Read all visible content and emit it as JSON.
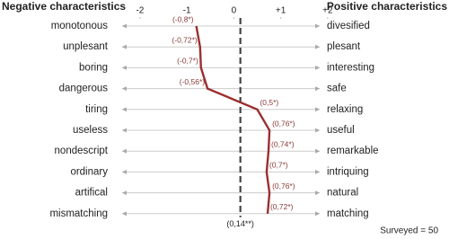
{
  "chart_data": {
    "type": "semantic-differential",
    "left_heading": "Negative characteristics",
    "right_heading": "Positive characteristics",
    "left_labels": [
      "monotonous",
      "unplesant",
      "boring",
      "dangerous",
      "tiring",
      "useless",
      "nondescript",
      "ordinary",
      "artifical",
      "mismatching"
    ],
    "right_labels": [
      "divesified",
      "plesant",
      "interesting",
      "safe",
      "relaxing",
      "useful",
      "remarkable",
      "intriquing",
      "natural",
      "matching"
    ],
    "values": [
      -0.8,
      -0.72,
      -0.7,
      -0.56,
      0.5,
      0.76,
      0.74,
      0.7,
      0.76,
      0.72
    ],
    "value_labels": [
      "(-0,8*)",
      "(-0,72*)",
      "(-0,7*)",
      "(-0,56*)",
      "(0,5*)",
      "(0,76*)",
      "(0,74*)",
      "(0,7*)",
      "(0,76*)",
      "(0,72*)"
    ],
    "reference": {
      "value": 0.14,
      "label": "(0,14**)"
    },
    "xlim": [
      -2.4,
      1.85
    ],
    "xticks": [
      -2,
      -1,
      0,
      {
        "value": 1,
        "label": "+1"
      },
      {
        "value": 2,
        "label": "+2"
      }
    ],
    "color": "#9b2f2f",
    "note": "Surveyed = 50"
  }
}
